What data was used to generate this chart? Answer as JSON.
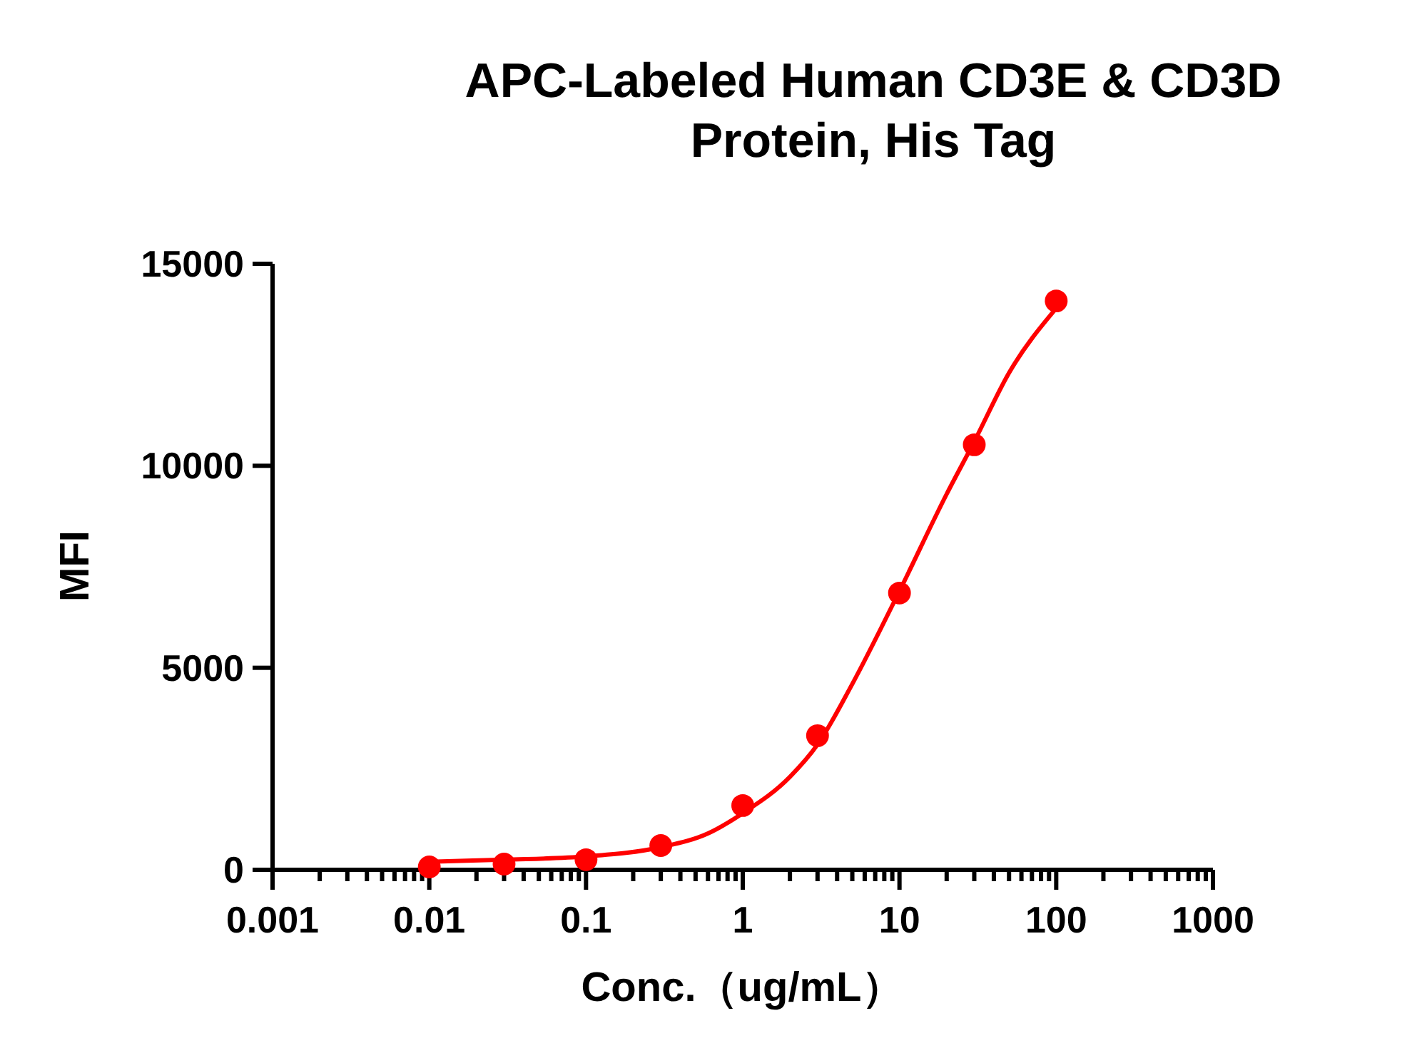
{
  "chart_data": {
    "type": "scatter",
    "title": "APC-Labeled Human CD3E & CD3D\nProtein, His Tag",
    "xlabel": "Conc.（ug/mL）",
    "ylabel": "MFI",
    "log": "x",
    "xlim": [
      0.001,
      1000
    ],
    "ylim": [
      0,
      15000
    ],
    "xticks": [
      0.001,
      {
        "value": 0.002,
        "label": null
      },
      {
        "value": 0.003,
        "label": null
      },
      {
        "value": 0.004,
        "label": null
      },
      {
        "value": 0.005,
        "label": null
      },
      {
        "value": 0.006,
        "label": null
      },
      {
        "value": 0.007,
        "label": null
      },
      {
        "value": 0.008,
        "label": null
      },
      {
        "value": 0.009,
        "label": null
      },
      0.01,
      {
        "value": 0.02,
        "label": null
      },
      {
        "value": 0.03,
        "label": null
      },
      {
        "value": 0.04,
        "label": null
      },
      {
        "value": 0.05,
        "label": null
      },
      {
        "value": 0.06,
        "label": null
      },
      {
        "value": 0.07,
        "label": null
      },
      {
        "value": 0.08,
        "label": null
      },
      {
        "value": 0.09,
        "label": null
      },
      0.1,
      {
        "value": 0.2,
        "label": null
      },
      {
        "value": 0.3,
        "label": null
      },
      {
        "value": 0.4,
        "label": null
      },
      {
        "value": 0.5,
        "label": null
      },
      {
        "value": 0.6,
        "label": null
      },
      {
        "value": 0.7,
        "label": null
      },
      {
        "value": 0.8,
        "label": null
      },
      {
        "value": 0.9,
        "label": null
      },
      1,
      {
        "value": 2,
        "label": null
      },
      {
        "value": 3,
        "label": null
      },
      {
        "value": 4,
        "label": null
      },
      {
        "value": 5,
        "label": null
      },
      {
        "value": 6,
        "label": null
      },
      {
        "value": 7,
        "label": null
      },
      {
        "value": 8,
        "label": null
      },
      {
        "value": 9,
        "label": null
      },
      10,
      {
        "value": 20,
        "label": null
      },
      {
        "value": 30,
        "label": null
      },
      {
        "value": 40,
        "label": null
      },
      {
        "value": 50,
        "label": null
      },
      {
        "value": 60,
        "label": null
      },
      {
        "value": 70,
        "label": null
      },
      {
        "value": 80,
        "label": null
      },
      {
        "value": 90,
        "label": null
      },
      100,
      {
        "value": 200,
        "label": null
      },
      {
        "value": 300,
        "label": null
      },
      {
        "value": 400,
        "label": null
      },
      {
        "value": 500,
        "label": null
      },
      {
        "value": 600,
        "label": null
      },
      {
        "value": 700,
        "label": null
      },
      {
        "value": 800,
        "label": null
      },
      {
        "value": 900,
        "label": null
      },
      1000
    ],
    "yticks": [
      0,
      5000,
      10000,
      15000
    ],
    "grid": false,
    "series": [
      {
        "type": "line",
        "color": "#ff0000",
        "marker": "none",
        "line_style": "solid",
        "x": [
          0.01,
          0.03,
          0.1,
          0.3,
          0.6,
          1,
          2,
          3,
          5,
          10,
          20,
          30,
          50,
          100
        ],
        "values": [
          200,
          250,
          330,
          560,
          900,
          1400,
          2300,
          3100,
          4600,
          6900,
          9300,
          10600,
          12300,
          13900
        ]
      },
      {
        "color": "#ff0000",
        "marker": "circle",
        "x": [
          0.01,
          0.03,
          0.1,
          0.3,
          1,
          3,
          10,
          30,
          100
        ],
        "values": [
          70,
          140,
          250,
          600,
          1590,
          3320,
          6850,
          10520,
          14080
        ]
      }
    ]
  }
}
